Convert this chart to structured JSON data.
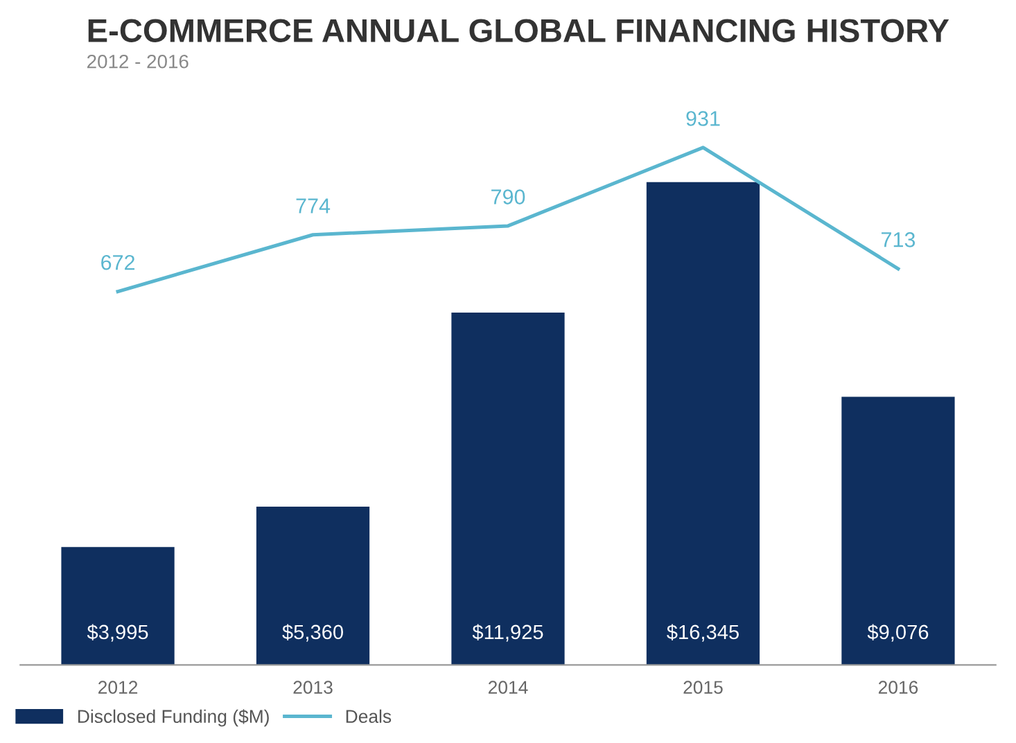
{
  "chart_data": {
    "type": "bar",
    "title": "E-COMMERCE ANNUAL GLOBAL FINANCING HISTORY",
    "subtitle": "2012 - 2016",
    "categories": [
      "2012",
      "2013",
      "2014",
      "2015",
      "2016"
    ],
    "series": [
      {
        "name": "Disclosed Funding ($M)",
        "color": "#0f2f5f",
        "values": [
          3995,
          5360,
          11925,
          16345,
          9076
        ],
        "value_labels": [
          "$3,995",
          "$5,360",
          "$11,925",
          "$16,345",
          "$9,076"
        ]
      },
      {
        "name": "Deals",
        "type": "line",
        "axis": "y2",
        "color": "#5ab6cf",
        "values": [
          672,
          774,
          790,
          931,
          713
        ],
        "value_labels": [
          "672",
          "774",
          "790",
          "931",
          "713"
        ]
      }
    ],
    "legend": "bottom left",
    "grid": false,
    "tick_labels": "x"
  }
}
